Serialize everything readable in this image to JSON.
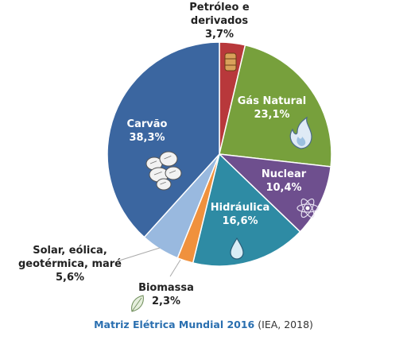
{
  "chart_data": {
    "type": "pie",
    "slices": [
      {
        "label_lines": [
          "Petróleo e",
          "derivados"
        ],
        "value_label": "3,7%",
        "value": 3.7,
        "color": "#b8383b",
        "icon": "oil-barrel-icon"
      },
      {
        "label_lines": [
          "Gás Natural"
        ],
        "value_label": "23,1%",
        "value": 23.1,
        "color": "#77a03c",
        "icon": "flame-icon"
      },
      {
        "label_lines": [
          "Nuclear"
        ],
        "value_label": "10,4%",
        "value": 10.4,
        "color": "#6e4f8e",
        "icon": "atom-icon"
      },
      {
        "label_lines": [
          "Hidráulica"
        ],
        "value_label": "16,6%",
        "value": 16.6,
        "color": "#2e8ba4",
        "icon": "water-drop-icon"
      },
      {
        "label_lines": [
          "Biomassa"
        ],
        "value_label": "2,3%",
        "value": 2.3,
        "color": "#f0913d",
        "icon": "leaf-icon"
      },
      {
        "label_lines": [
          "Solar, eólica,",
          "geotérmica, maré"
        ],
        "value_label": "5,6%",
        "value": 5.6,
        "color": "#99b9df",
        "icon": ""
      },
      {
        "label_lines": [
          "Carvão"
        ],
        "value_label": "38,3%",
        "value": 38.3,
        "color": "#3b66a0",
        "icon": "coal-icon"
      }
    ]
  },
  "caption": {
    "title": "Matriz Elétrica Mundial 2016",
    "source": "(IEA, 2018)"
  }
}
